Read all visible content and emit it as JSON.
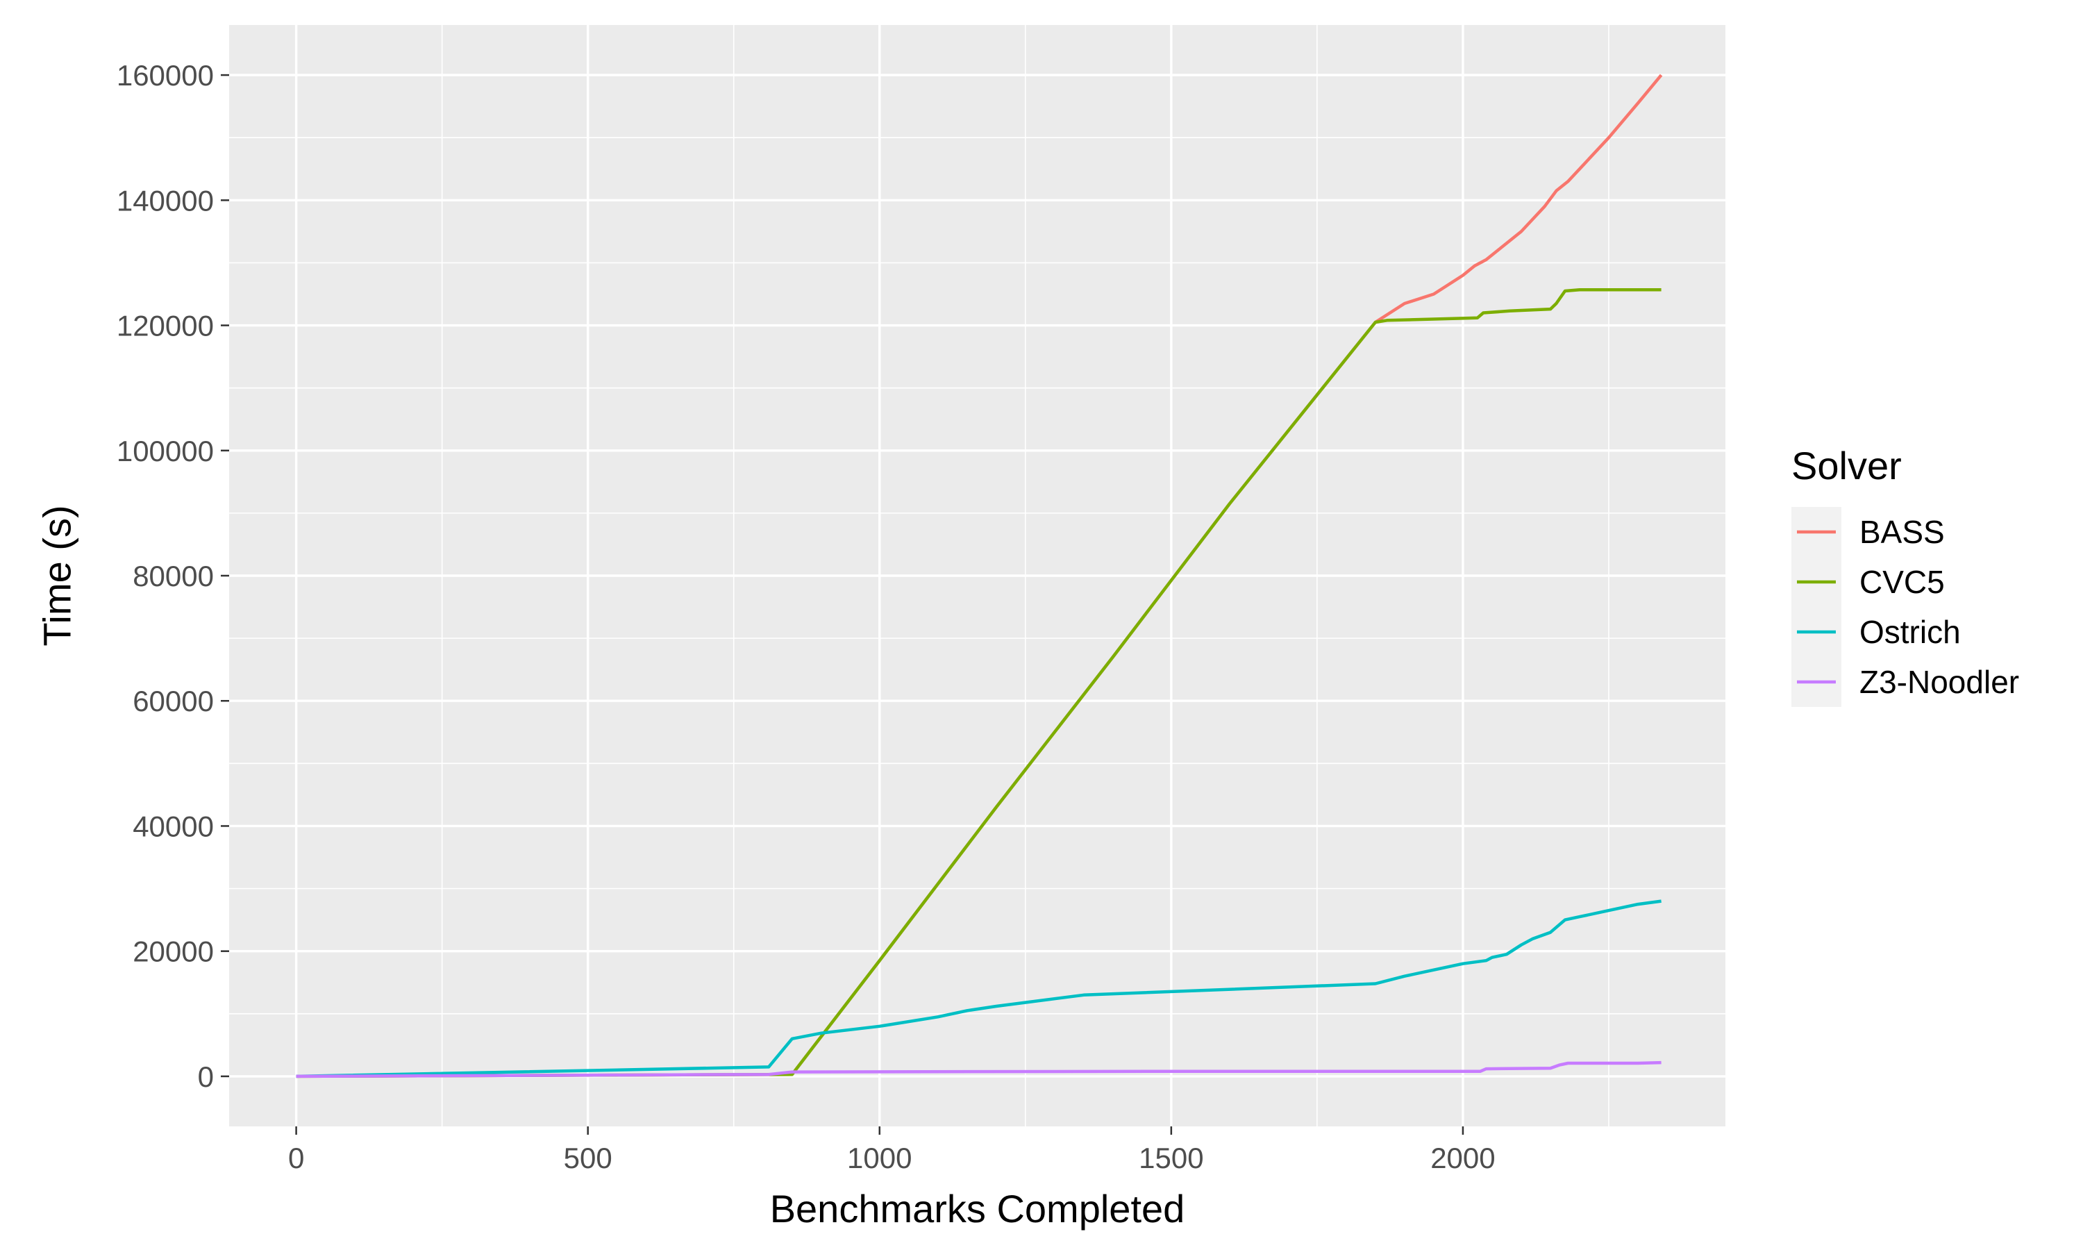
{
  "chart_data": {
    "type": "line",
    "title": "",
    "xlabel": "Benchmarks Completed",
    "ylabel": "Time (s)",
    "xlim": [
      -115,
      2450
    ],
    "ylim": [
      -8000,
      168000
    ],
    "xticks": [
      0,
      500,
      1000,
      1500,
      2000
    ],
    "xtick_labels": [
      "0",
      "500",
      "1000",
      "1500",
      "2000"
    ],
    "yticks": [
      0,
      20000,
      40000,
      60000,
      80000,
      100000,
      120000,
      140000,
      160000
    ],
    "ytick_labels": [
      "0",
      "20000",
      "40000",
      "60000",
      "80000",
      "100000",
      "120000",
      "140000",
      "160000"
    ],
    "grid": true,
    "panel_background": "#EBEBEB",
    "legend": {
      "title": "Solver",
      "position": "right"
    },
    "series": [
      {
        "name": "BASS",
        "color": "#F8766D",
        "points": [
          [
            0,
            0
          ],
          [
            850,
            300
          ],
          [
            1000,
            18500
          ],
          [
            1200,
            43000
          ],
          [
            1400,
            67000
          ],
          [
            1600,
            91500
          ],
          [
            1850,
            120500
          ],
          [
            1875,
            122000
          ],
          [
            1900,
            123500
          ],
          [
            1950,
            125000
          ],
          [
            2000,
            128000
          ],
          [
            2020,
            129500
          ],
          [
            2040,
            130500
          ],
          [
            2060,
            132000
          ],
          [
            2080,
            133500
          ],
          [
            2100,
            135000
          ],
          [
            2120,
            137000
          ],
          [
            2140,
            139000
          ],
          [
            2160,
            141500
          ],
          [
            2180,
            143000
          ],
          [
            2200,
            145000
          ],
          [
            2250,
            150000
          ],
          [
            2300,
            155500
          ],
          [
            2340,
            160000
          ]
        ]
      },
      {
        "name": "CVC5",
        "color": "#7CAE00",
        "points": [
          [
            0,
            0
          ],
          [
            850,
            300
          ],
          [
            1000,
            18500
          ],
          [
            1200,
            43000
          ],
          [
            1400,
            67000
          ],
          [
            1600,
            91500
          ],
          [
            1850,
            120500
          ],
          [
            1870,
            120800
          ],
          [
            1950,
            121000
          ],
          [
            2025,
            121200
          ],
          [
            2035,
            122000
          ],
          [
            2080,
            122300
          ],
          [
            2150,
            122600
          ],
          [
            2160,
            123500
          ],
          [
            2175,
            125500
          ],
          [
            2200,
            125700
          ],
          [
            2340,
            125700
          ]
        ]
      },
      {
        "name": "Ostrich",
        "color": "#00BFC4",
        "points": [
          [
            0,
            0
          ],
          [
            810,
            1500
          ],
          [
            850,
            6000
          ],
          [
            900,
            6900
          ],
          [
            1000,
            8000
          ],
          [
            1100,
            9500
          ],
          [
            1150,
            10500
          ],
          [
            1200,
            11200
          ],
          [
            1350,
            13000
          ],
          [
            1850,
            14800
          ],
          [
            1900,
            16000
          ],
          [
            1950,
            17000
          ],
          [
            2000,
            18000
          ],
          [
            2040,
            18500
          ],
          [
            2050,
            19000
          ],
          [
            2075,
            19500
          ],
          [
            2100,
            21000
          ],
          [
            2120,
            22000
          ],
          [
            2150,
            23000
          ],
          [
            2175,
            25000
          ],
          [
            2200,
            25500
          ],
          [
            2250,
            26500
          ],
          [
            2300,
            27500
          ],
          [
            2340,
            28000
          ]
        ]
      },
      {
        "name": "Z3-Noodler",
        "color": "#C77CFF",
        "points": [
          [
            0,
            0
          ],
          [
            810,
            300
          ],
          [
            850,
            700
          ],
          [
            1500,
            800
          ],
          [
            2030,
            800
          ],
          [
            2040,
            1200
          ],
          [
            2150,
            1300
          ],
          [
            2165,
            1800
          ],
          [
            2180,
            2100
          ],
          [
            2300,
            2100
          ],
          [
            2340,
            2200
          ]
        ]
      }
    ]
  }
}
